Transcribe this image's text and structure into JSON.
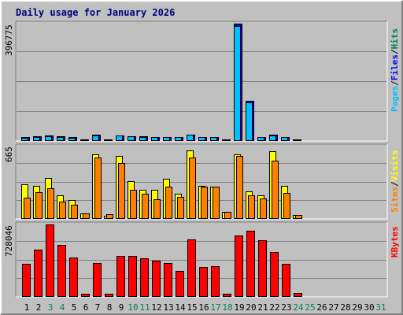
{
  "title": "Daily usage for January 2026",
  "colors": {
    "hits": "#00805c",
    "files": "#0000ff",
    "pages": "#00c0ff",
    "visits": "#ffff00",
    "sites": "#ff8000",
    "kbytes": "#ff0000",
    "sep": "#000000",
    "weekend": "#00805c",
    "weekday": "#000000"
  },
  "right_labels": {
    "top": [
      {
        "text": "Pages",
        "color_key": "pages"
      },
      {
        "text": "/",
        "color_key": "sep"
      },
      {
        "text": "Files",
        "color_key": "files"
      },
      {
        "text": "/",
        "color_key": "sep"
      },
      {
        "text": "Hits",
        "color_key": "hits"
      }
    ],
    "middle": [
      {
        "text": "Sites",
        "color_key": "sites"
      },
      {
        "text": "/",
        "color_key": "sep"
      },
      {
        "text": "Visits",
        "color_key": "visits"
      }
    ],
    "bottom": [
      {
        "text": "KBytes",
        "color_key": "kbytes"
      }
    ]
  },
  "chart_data": {
    "type": "bar",
    "categories": [
      "1",
      "2",
      "3",
      "4",
      "5",
      "6",
      "7",
      "8",
      "9",
      "10",
      "11",
      "12",
      "13",
      "14",
      "15",
      "16",
      "17",
      "18",
      "19",
      "20",
      "21",
      "22",
      "23",
      "24",
      "25",
      "26",
      "27",
      "28",
      "29",
      "30",
      "31"
    ],
    "weekend_days": [
      "3",
      "4",
      "10",
      "11",
      "17",
      "18",
      "24",
      "25",
      "31"
    ],
    "panels": [
      {
        "name": "hits-panel",
        "max_label": "396775",
        "max": 396775,
        "series": [
          {
            "name": "Hits",
            "color_key": "hits",
            "values": [
              10000,
              13000,
              15000,
              13000,
              10000,
              4000,
              18000,
              2000,
              17000,
              14000,
              13000,
              11000,
              11000,
              12000,
              20000,
              11000,
              11000,
              3000,
              396775,
              135000,
              12000,
              18000,
              11000,
              3000,
              0,
              0,
              0,
              0,
              0,
              0,
              0
            ]
          },
          {
            "name": "Files",
            "color_key": "files",
            "values": [
              10000,
              13000,
              15000,
              13000,
              10000,
              4000,
              18000,
              2000,
              17000,
              14000,
              13000,
              11000,
              11000,
              12000,
              20000,
              11000,
              11000,
              3000,
              396775,
              135000,
              12000,
              18000,
              11000,
              3000,
              0,
              0,
              0,
              0,
              0,
              0,
              0
            ]
          },
          {
            "name": "Pages",
            "color_key": "pages",
            "values": [
              9000,
              12000,
              14000,
              12000,
              9000,
              3000,
              17000,
              1000,
              16000,
              13000,
              12000,
              10000,
              10000,
              11000,
              19000,
              10000,
              10000,
              2000,
              390000,
              130000,
              11000,
              17000,
              10000,
              2000,
              0,
              0,
              0,
              0,
              0,
              0,
              0
            ]
          }
        ]
      },
      {
        "name": "sites-panel",
        "max_label": "665",
        "max": 665,
        "series": [
          {
            "name": "Visits",
            "color_key": "visits",
            "values": [
              315,
              300,
              370,
              215,
              170,
              45,
              595,
              25,
              575,
              340,
              265,
              260,
              365,
              225,
              630,
              300,
              295,
              55,
              595,
              245,
              215,
              620,
              300,
              30,
              0,
              0,
              0,
              0,
              0,
              0,
              0
            ]
          },
          {
            "name": "Sites",
            "color_key": "sites",
            "values": [
              190,
              240,
              280,
              150,
              125,
              45,
              565,
              35,
              515,
              260,
              230,
              175,
              290,
              200,
              560,
              290,
              295,
              55,
              575,
              210,
              185,
              530,
              235,
              30,
              0,
              0,
              0,
              0,
              0,
              0,
              0
            ]
          }
        ]
      },
      {
        "name": "kbytes-panel",
        "max_label": "728046",
        "max": 728046,
        "series": [
          {
            "name": "KBytes",
            "color_key": "kbytes",
            "values": [
              325000,
              475000,
              728046,
              520000,
              395000,
              25000,
              340000,
              25000,
              405000,
              405000,
              385000,
              360000,
              335000,
              255000,
              580000,
              295000,
              305000,
              25000,
              615000,
              665000,
              570000,
              445000,
              325000,
              35000,
              0,
              0,
              0,
              0,
              0,
              0,
              0
            ]
          }
        ]
      }
    ]
  }
}
